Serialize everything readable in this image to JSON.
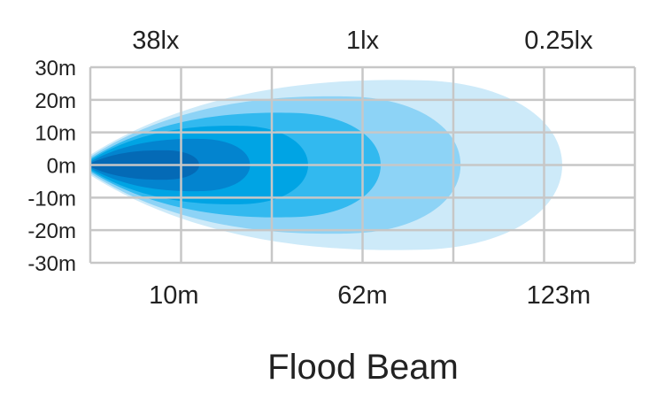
{
  "chart_data": {
    "type": "area",
    "title": "Flood Beam",
    "xlabel": "",
    "ylabel": "",
    "xlim": [
      0,
      150
    ],
    "ylim": [
      -30,
      30
    ],
    "grid": true,
    "y_ticks": [
      "30m",
      "20m",
      "10m",
      "0m",
      "-10m",
      "-20m",
      "-30m"
    ],
    "y_tick_values": [
      30,
      20,
      10,
      0,
      -10,
      -20,
      -30
    ],
    "x_gridlines": [
      0,
      25,
      50,
      75,
      100,
      125,
      150
    ],
    "distance_labels": [
      {
        "text": "10m",
        "x": 23
      },
      {
        "text": "62m",
        "x": 75
      },
      {
        "text": "123m",
        "x": 129
      }
    ],
    "lux_labels": [
      {
        "text": "38lx",
        "x": 18
      },
      {
        "text": "1lx",
        "x": 75
      },
      {
        "text": "0.25lx",
        "x": 129
      }
    ],
    "zones": [
      {
        "reach": 130,
        "half_width": 26,
        "color": "#cdeaf9"
      },
      {
        "reach": 102,
        "half_width": 21,
        "color": "#8dd3f6"
      },
      {
        "reach": 80,
        "half_width": 16,
        "color": "#32b9ef"
      },
      {
        "reach": 60,
        "half_width": 12,
        "color": "#00a4e4"
      },
      {
        "reach": 44,
        "half_width": 8,
        "color": "#0384cf"
      },
      {
        "reach": 30,
        "half_width": 4.5,
        "color": "#046ab6"
      }
    ],
    "grid_color": "#c7c7c7"
  }
}
